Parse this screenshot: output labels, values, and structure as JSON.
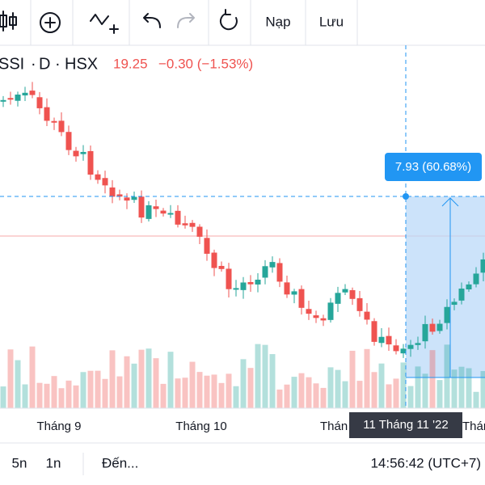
{
  "toolbar": {
    "reload": "Nạp",
    "save": "Lưu"
  },
  "ticker": {
    "symbol": "SSI",
    "interval": "D",
    "exchange": "HSX",
    "price": "19.25",
    "change": "−0.30 (−1.53%)"
  },
  "measure": {
    "label": "7.93 (60.68%)"
  },
  "x_axis": {
    "labels": [
      "Tháng 9",
      "Tháng 10",
      "Thán",
      "Thán"
    ],
    "crosshair_label": "11 Tháng 11 '22"
  },
  "bottom_bar": {
    "ranges": [
      "5n",
      "1n"
    ],
    "goto": "Đến...",
    "time": "14:56:42 (UTC+7)"
  }
}
